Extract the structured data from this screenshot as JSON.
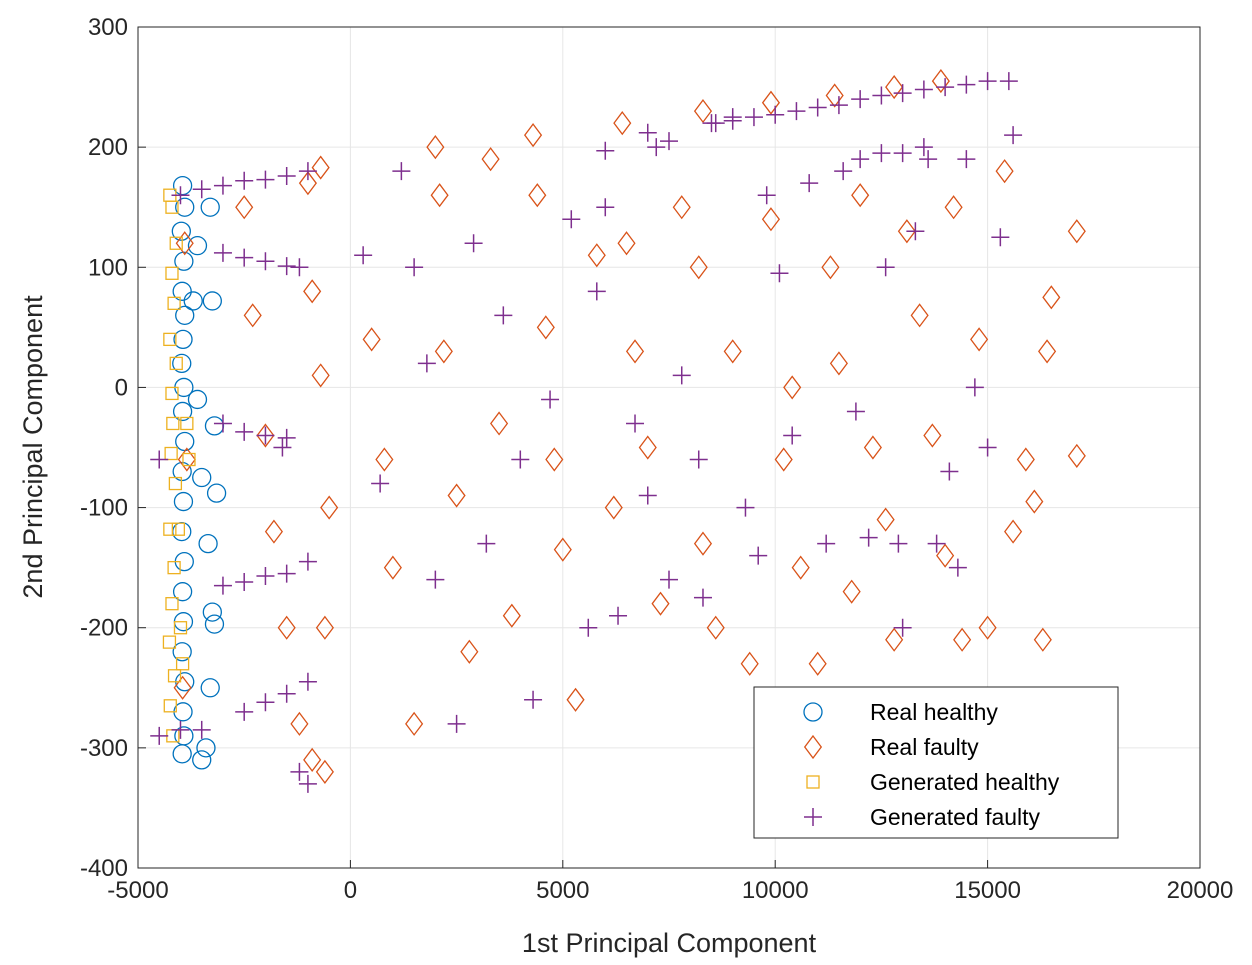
{
  "colors": {
    "real_healthy": "#0072BD",
    "real_faulty": "#D95319",
    "generated_healthy": "#EDB120",
    "generated_faulty": "#7E2F8E",
    "grid": "#e6e6e6",
    "axis": "#262626"
  },
  "chart_data": {
    "type": "scatter",
    "title": "",
    "xlabel": "1st Principal Component",
    "ylabel": "2nd Principal Component",
    "xlim": [
      -5000,
      20000
    ],
    "ylim": [
      -400,
      300
    ],
    "xticks": [
      -5000,
      0,
      5000,
      10000,
      15000,
      20000
    ],
    "yticks": [
      -400,
      -300,
      -200,
      -100,
      0,
      100,
      200,
      300
    ],
    "xtick_labels": [
      "-5000",
      "0",
      "5000",
      "10000",
      "15000",
      "20000"
    ],
    "ytick_labels": [
      "-400",
      "-300",
      "-200",
      "-100",
      "0",
      "100",
      "200",
      "300"
    ],
    "grid": true,
    "legend_position": "bottom-right",
    "series": [
      {
        "name": "Real healthy",
        "marker": "circle",
        "points": [
          [
            -3950,
            168
          ],
          [
            -3900,
            150
          ],
          [
            -3980,
            130
          ],
          [
            -3920,
            105
          ],
          [
            -3960,
            80
          ],
          [
            -3900,
            60
          ],
          [
            -3940,
            40
          ],
          [
            -3970,
            20
          ],
          [
            -3920,
            0
          ],
          [
            -3950,
            -20
          ],
          [
            -3900,
            -45
          ],
          [
            -3960,
            -70
          ],
          [
            -3930,
            -95
          ],
          [
            -3970,
            -120
          ],
          [
            -3910,
            -145
          ],
          [
            -3950,
            -170
          ],
          [
            -3930,
            -195
          ],
          [
            -3960,
            -220
          ],
          [
            -3900,
            -245
          ],
          [
            -3940,
            -270
          ],
          [
            -3920,
            -290
          ],
          [
            -3960,
            -305
          ],
          [
            -3300,
            150
          ],
          [
            -3250,
            72
          ],
          [
            -3600,
            118
          ],
          [
            -3200,
            -32
          ],
          [
            -3150,
            -88
          ],
          [
            -3350,
            -130
          ],
          [
            -3250,
            -187
          ],
          [
            -3200,
            -197
          ],
          [
            -3300,
            -250
          ],
          [
            -3400,
            -300
          ],
          [
            -3500,
            -310
          ],
          [
            -3700,
            72
          ],
          [
            -3600,
            -10
          ],
          [
            -3500,
            -75
          ]
        ]
      },
      {
        "name": "Real faulty",
        "marker": "diamond",
        "points": [
          [
            -700,
            183
          ],
          [
            2000,
            200
          ],
          [
            4300,
            210
          ],
          [
            6400,
            220
          ],
          [
            8300,
            230
          ],
          [
            9900,
            237
          ],
          [
            11400,
            243
          ],
          [
            12800,
            250
          ],
          [
            13900,
            255
          ],
          [
            -3900,
            120
          ],
          [
            -3850,
            -60
          ],
          [
            -3950,
            -250
          ],
          [
            -2500,
            150
          ],
          [
            -2300,
            60
          ],
          [
            -2000,
            -40
          ],
          [
            -1800,
            -120
          ],
          [
            -1500,
            -200
          ],
          [
            -1200,
            -280
          ],
          [
            -900,
            -310
          ],
          [
            -600,
            -320
          ],
          [
            -1000,
            170
          ],
          [
            -900,
            80
          ],
          [
            -700,
            10
          ],
          [
            -500,
            -100
          ],
          [
            -600,
            -200
          ],
          [
            500,
            40
          ],
          [
            800,
            -60
          ],
          [
            1000,
            -150
          ],
          [
            1500,
            -280
          ],
          [
            2100,
            160
          ],
          [
            2200,
            30
          ],
          [
            2500,
            -90
          ],
          [
            2800,
            -220
          ],
          [
            3300,
            190
          ],
          [
            3500,
            -30
          ],
          [
            3800,
            -190
          ],
          [
            4400,
            160
          ],
          [
            4600,
            50
          ],
          [
            4800,
            -60
          ],
          [
            5000,
            -135
          ],
          [
            5300,
            -260
          ],
          [
            5800,
            110
          ],
          [
            6200,
            -100
          ],
          [
            6500,
            120
          ],
          [
            6700,
            30
          ],
          [
            7000,
            -50
          ],
          [
            7300,
            -180
          ],
          [
            7800,
            150
          ],
          [
            8200,
            100
          ],
          [
            8300,
            -130
          ],
          [
            8600,
            -200
          ],
          [
            9000,
            30
          ],
          [
            9400,
            -230
          ],
          [
            9900,
            140
          ],
          [
            10200,
            -60
          ],
          [
            10400,
            0
          ],
          [
            10600,
            -150
          ],
          [
            11000,
            -230
          ],
          [
            11300,
            100
          ],
          [
            11500,
            20
          ],
          [
            11800,
            -170
          ],
          [
            12000,
            160
          ],
          [
            12300,
            -50
          ],
          [
            12600,
            -110
          ],
          [
            12800,
            -210
          ],
          [
            13100,
            130
          ],
          [
            13400,
            60
          ],
          [
            13700,
            -40
          ],
          [
            14000,
            -140
          ],
          [
            14200,
            150
          ],
          [
            14400,
            -210
          ],
          [
            14800,
            40
          ],
          [
            15000,
            -200
          ],
          [
            15400,
            180
          ],
          [
            15600,
            -120
          ],
          [
            15900,
            -60
          ],
          [
            16100,
            -95
          ],
          [
            16300,
            -210
          ],
          [
            16500,
            75
          ],
          [
            16400,
            30
          ],
          [
            17100,
            130
          ],
          [
            17100,
            -57
          ]
        ]
      },
      {
        "name": "Generated healthy",
        "marker": "square",
        "points": [
          [
            -4250,
            160
          ],
          [
            -4200,
            150
          ],
          [
            -4100,
            120
          ],
          [
            -4200,
            95
          ],
          [
            -4150,
            70
          ],
          [
            -4250,
            40
          ],
          [
            -4100,
            20
          ],
          [
            -4200,
            -5
          ],
          [
            -4180,
            -30
          ],
          [
            -4220,
            -55
          ],
          [
            -4120,
            -80
          ],
          [
            -4250,
            -118
          ],
          [
            -4150,
            -150
          ],
          [
            -4200,
            -180
          ],
          [
            -4260,
            -212
          ],
          [
            -4140,
            -240
          ],
          [
            -4240,
            -265
          ],
          [
            -4180,
            -290
          ],
          [
            -4050,
            -118
          ],
          [
            -4000,
            -200
          ],
          [
            -3950,
            -230
          ],
          [
            -3850,
            -30
          ],
          [
            -3800,
            -60
          ]
        ]
      },
      {
        "name": "Generated faulty",
        "marker": "plus",
        "points": [
          [
            -4000,
            160
          ],
          [
            -3500,
            165
          ],
          [
            -3000,
            168
          ],
          [
            -2500,
            172
          ],
          [
            -2000,
            173
          ],
          [
            -1500,
            176
          ],
          [
            -1000,
            180
          ],
          [
            -3000,
            112
          ],
          [
            -2500,
            108
          ],
          [
            -2000,
            105
          ],
          [
            -1500,
            101
          ],
          [
            -1200,
            100
          ],
          [
            -3000,
            -30
          ],
          [
            -2500,
            -37
          ],
          [
            -2000,
            -40
          ],
          [
            -1500,
            -42
          ],
          [
            -3000,
            -165
          ],
          [
            -2500,
            -162
          ],
          [
            -2000,
            -157
          ],
          [
            -1500,
            -155
          ],
          [
            -1000,
            -145
          ],
          [
            -4500,
            -290
          ],
          [
            -4000,
            -285
          ],
          [
            -3500,
            -285
          ],
          [
            -2500,
            -270
          ],
          [
            -2000,
            -262
          ],
          [
            -1500,
            -255
          ],
          [
            -1000,
            -245
          ],
          [
            -4500,
            -60
          ],
          [
            -1600,
            -50
          ],
          [
            -1200,
            -320
          ],
          [
            -1000,
            -330
          ],
          [
            300,
            110
          ],
          [
            700,
            -80
          ],
          [
            1200,
            180
          ],
          [
            1500,
            100
          ],
          [
            1800,
            20
          ],
          [
            2000,
            -160
          ],
          [
            2500,
            -280
          ],
          [
            2900,
            120
          ],
          [
            3200,
            -130
          ],
          [
            3600,
            60
          ],
          [
            4000,
            -60
          ],
          [
            4300,
            -260
          ],
          [
            4700,
            -10
          ],
          [
            5200,
            140
          ],
          [
            5600,
            -200
          ],
          [
            5800,
            80
          ],
          [
            6000,
            150
          ],
          [
            6300,
            -190
          ],
          [
            6700,
            -30
          ],
          [
            7000,
            -90
          ],
          [
            7200,
            200
          ],
          [
            7500,
            -160
          ],
          [
            7800,
            10
          ],
          [
            8200,
            -60
          ],
          [
            8300,
            -175
          ],
          [
            8600,
            220
          ],
          [
            9000,
            225
          ],
          [
            9300,
            -100
          ],
          [
            9600,
            -140
          ],
          [
            9800,
            160
          ],
          [
            10100,
            95
          ],
          [
            10400,
            -40
          ],
          [
            10800,
            170
          ],
          [
            11200,
            -130
          ],
          [
            11600,
            180
          ],
          [
            11900,
            -20
          ],
          [
            12200,
            -125
          ],
          [
            12600,
            100
          ],
          [
            12900,
            -130
          ],
          [
            13000,
            -200
          ],
          [
            13300,
            130
          ],
          [
            13600,
            190
          ],
          [
            13800,
            -130
          ],
          [
            14100,
            -70
          ],
          [
            14300,
            -150
          ],
          [
            14500,
            190
          ],
          [
            14700,
            0
          ],
          [
            15000,
            -50
          ],
          [
            15300,
            125
          ],
          [
            15600,
            210
          ],
          [
            15500,
            255
          ],
          [
            15000,
            255
          ],
          [
            14500,
            252
          ],
          [
            14000,
            250
          ],
          [
            13500,
            248
          ],
          [
            13000,
            245
          ],
          [
            12500,
            243
          ],
          [
            12000,
            240
          ],
          [
            11500,
            235
          ],
          [
            11000,
            233
          ],
          [
            10500,
            230
          ],
          [
            10000,
            227
          ],
          [
            9500,
            225
          ],
          [
            9000,
            222
          ],
          [
            8500,
            220
          ],
          [
            7500,
            205
          ],
          [
            7000,
            212
          ],
          [
            6000,
            197
          ],
          [
            12000,
            190
          ],
          [
            12500,
            195
          ],
          [
            13000,
            195
          ],
          [
            13500,
            200
          ]
        ]
      }
    ]
  }
}
